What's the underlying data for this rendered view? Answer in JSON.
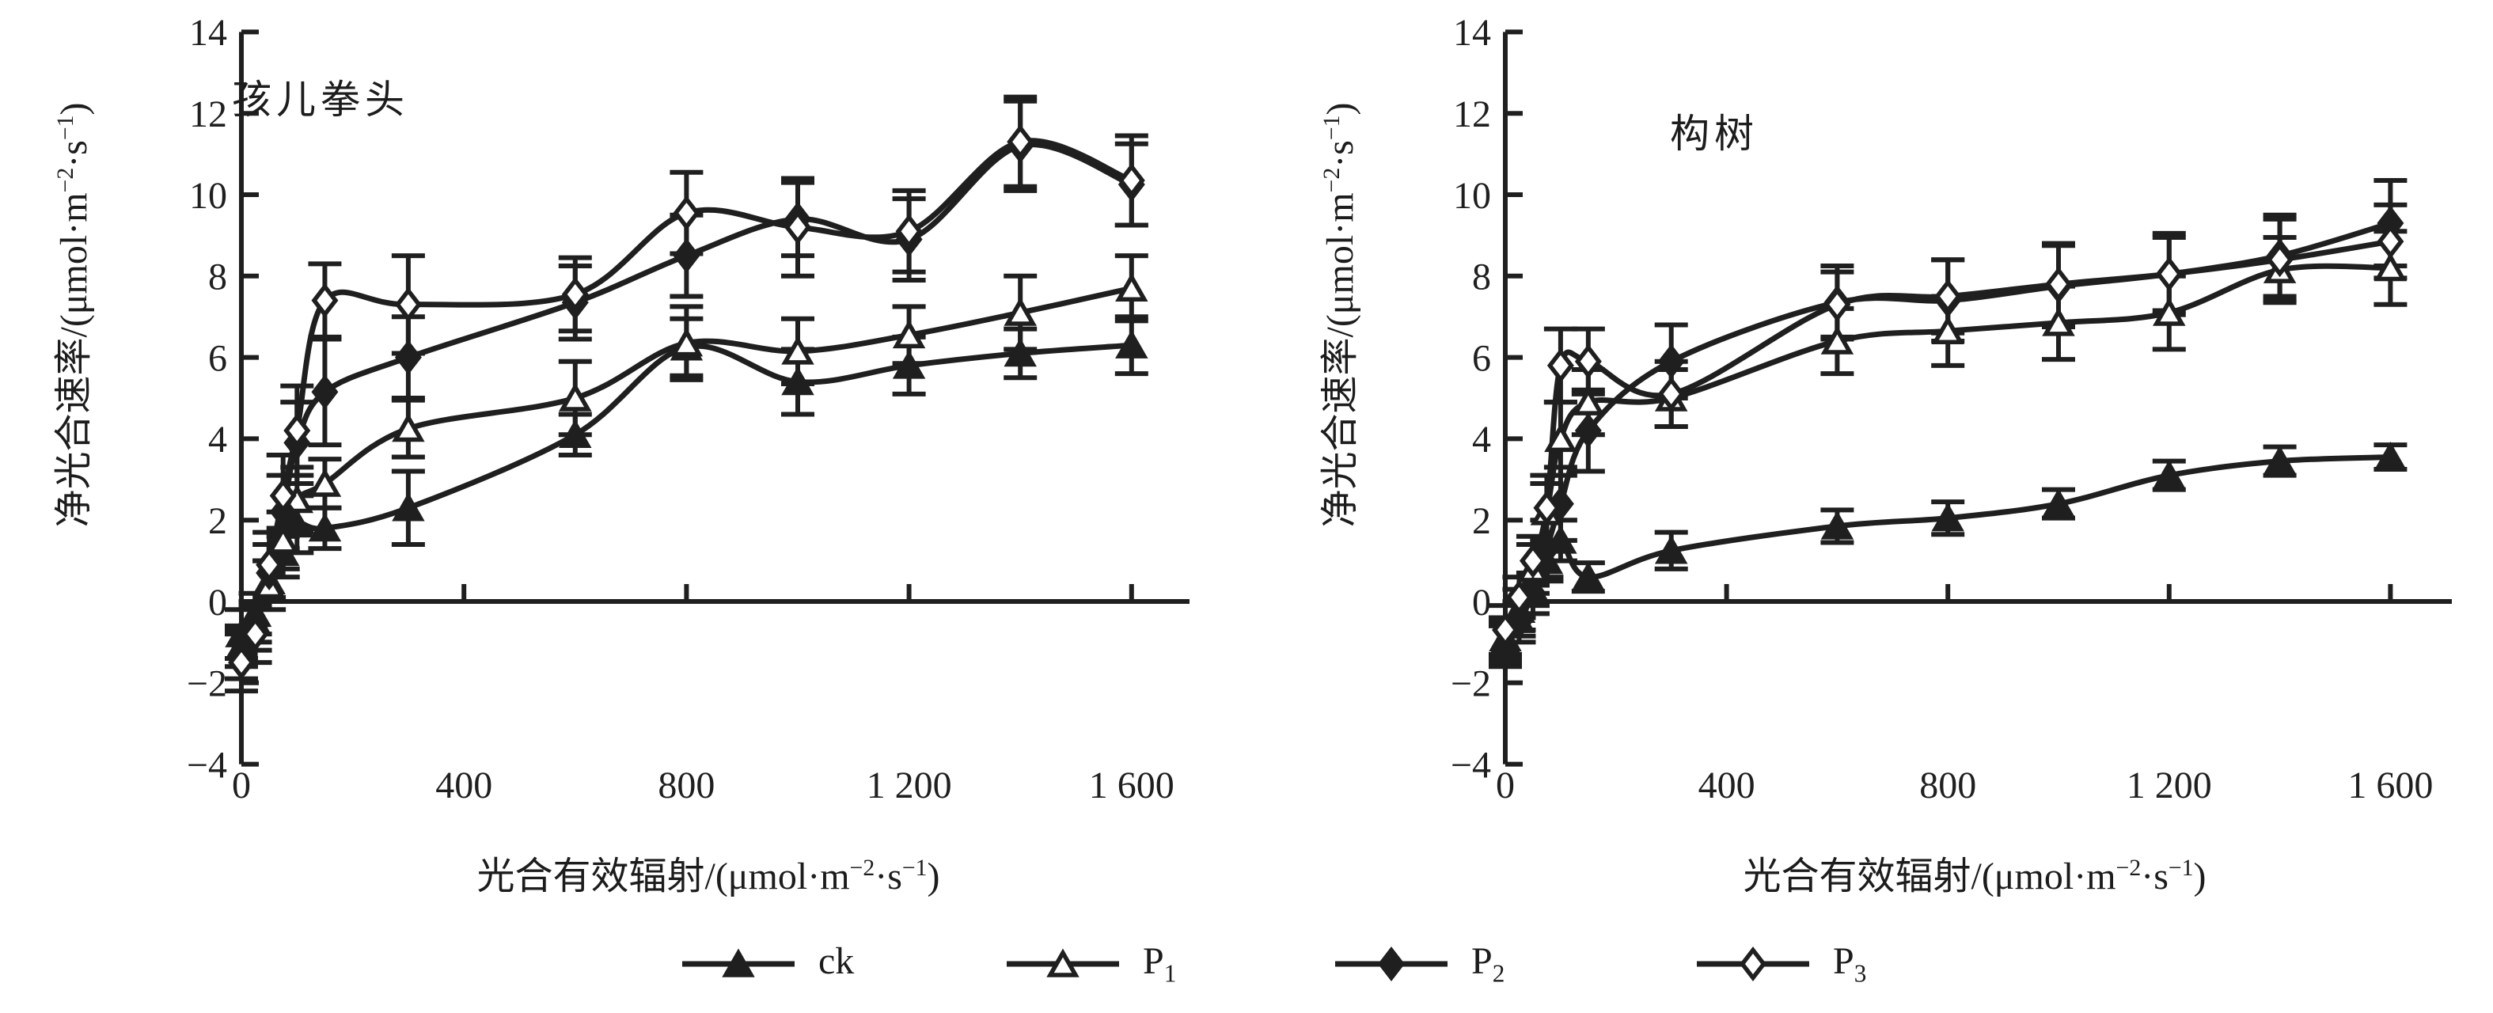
{
  "page": {
    "background_color": "#ffffff",
    "ink_color": "#1f1f1f"
  },
  "axis_titles": {
    "y_full": "净光合速率/(μmol·m⁻²·s⁻¹)",
    "x_full": "光合有效辐射/(μmol·m⁻²·s⁻¹)",
    "y_parts": {
      "pre": "净光合速率/(μmol·m",
      "sup1": "−2",
      "mid": "·s",
      "sup2": "−1",
      "post": ")"
    },
    "x_parts": {
      "pre": "光合有效辐射/(μmol·m",
      "sup1": "−2",
      "mid": "·s",
      "sup2": "−1",
      "post": ")"
    }
  },
  "legend": {
    "entries": [
      {
        "id": "ck",
        "base": "ck",
        "sub": "",
        "marker": "triangle-filled"
      },
      {
        "id": "P1",
        "base": "P",
        "sub": "1",
        "marker": "triangle-open"
      },
      {
        "id": "P2",
        "base": "P",
        "sub": "2",
        "marker": "diamond-filled"
      },
      {
        "id": "P3",
        "base": "P",
        "sub": "3",
        "marker": "diamond-open"
      }
    ]
  },
  "chart_data": [
    {
      "type": "line",
      "panel": "left",
      "title": "孩儿拳头",
      "xlabel": "光合有效辐射/(μmol·m⁻²·s⁻¹)",
      "ylabel": "净光合速率/(μmol·m⁻²·s⁻¹)",
      "xlim": [
        0,
        1700
      ],
      "ylim": [
        -4,
        14
      ],
      "grid": false,
      "x_tick_values": [
        0,
        400,
        800,
        1200,
        1600
      ],
      "x_tick_labels": [
        "0",
        "400",
        "800",
        "1 200",
        "1 600"
      ],
      "y_tick_values": [
        14,
        12,
        10,
        8,
        6,
        4,
        2,
        0,
        -2,
        -4
      ],
      "y_tick_labels": [
        "14",
        "12",
        "10",
        "8",
        "6",
        "4",
        "2",
        "0",
        "−2",
        "−4"
      ],
      "x": [
        0,
        25,
        50,
        75,
        100,
        150,
        300,
        600,
        800,
        1000,
        1200,
        1400,
        1600
      ],
      "series": [
        {
          "name": "ck",
          "marker": "triangle-filled",
          "values": [
            -0.8,
            -0.3,
            0.5,
            1.2,
            1.9,
            1.8,
            2.3,
            4.1,
            6.25,
            5.4,
            5.8,
            6.1,
            6.3
          ],
          "errors": [
            0.6,
            0.5,
            0.5,
            0.6,
            0.7,
            0.5,
            0.9,
            0.5,
            0.7,
            0.8,
            0.7,
            0.6,
            0.7
          ]
        },
        {
          "name": "P1",
          "marker": "triangle-open",
          "values": [
            -1.1,
            -0.5,
            0.4,
            1.5,
            2.5,
            2.9,
            4.25,
            5.0,
            6.35,
            6.15,
            6.55,
            7.1,
            7.7
          ],
          "errors": [
            0.5,
            0.5,
            0.6,
            0.7,
            0.8,
            0.6,
            0.7,
            0.9,
            0.9,
            0.8,
            0.7,
            0.9,
            0.8
          ]
        },
        {
          "name": "P2",
          "marker": "diamond-filled",
          "values": [
            -1.3,
            -0.6,
            0.7,
            2.2,
            3.9,
            5.15,
            6.0,
            7.35,
            8.5,
            9.4,
            8.9,
            11.2,
            10.25
          ],
          "errors": [
            0.6,
            0.6,
            0.7,
            0.9,
            1.0,
            1.3,
            1.0,
            0.9,
            1.0,
            0.9,
            1.0,
            1.1,
            1.0
          ]
        },
        {
          "name": "P3",
          "marker": "diamond-open",
          "values": [
            -1.5,
            -0.8,
            0.9,
            2.6,
            4.2,
            7.4,
            7.3,
            7.55,
            9.55,
            9.2,
            9.1,
            11.3,
            10.35
          ],
          "errors": [
            0.7,
            0.7,
            0.8,
            1.0,
            1.1,
            0.9,
            1.2,
            0.9,
            1.0,
            1.2,
            1.0,
            1.1,
            1.1
          ]
        }
      ]
    },
    {
      "type": "line",
      "panel": "right",
      "title": "构树",
      "xlabel": "光合有效辐射/(μmol·m⁻²·s⁻¹)",
      "ylabel": "净光合速率/(μmol·m⁻²·s⁻¹)",
      "xlim": [
        0,
        1700
      ],
      "ylim": [
        -4,
        14
      ],
      "grid": false,
      "x_tick_values": [
        0,
        400,
        800,
        1200,
        1600
      ],
      "x_tick_labels": [
        "0",
        "400",
        "800",
        "1 200",
        "1 600"
      ],
      "y_tick_values": [
        14,
        12,
        10,
        8,
        6,
        4,
        2,
        0,
        -2,
        -4
      ],
      "y_tick_labels": [
        "14",
        "12",
        "10",
        "8",
        "6",
        "4",
        "2",
        "0",
        "−2",
        "−4"
      ],
      "x": [
        0,
        25,
        50,
        75,
        100,
        150,
        300,
        600,
        800,
        1000,
        1200,
        1400,
        1600
      ],
      "series": [
        {
          "name": "ck",
          "marker": "triangle-filled",
          "values": [
            -1.0,
            -0.45,
            0.3,
            1.0,
            1.5,
            0.6,
            1.25,
            1.85,
            2.05,
            2.4,
            3.1,
            3.45,
            3.55
          ],
          "errors": [
            0.5,
            0.4,
            0.4,
            0.5,
            0.5,
            0.35,
            0.45,
            0.4,
            0.4,
            0.35,
            0.35,
            0.35,
            0.3
          ]
        },
        {
          "name": "P1",
          "marker": "triangle-open",
          "values": [
            -0.9,
            -0.2,
            0.8,
            2.2,
            4.0,
            4.9,
            5.0,
            6.4,
            6.65,
            6.85,
            7.1,
            8.15,
            8.2
          ],
          "errors": [
            0.5,
            0.5,
            0.6,
            0.7,
            0.9,
            0.8,
            0.7,
            0.8,
            0.85,
            0.9,
            0.9,
            0.8,
            0.9
          ]
        },
        {
          "name": "P2",
          "marker": "diamond-filled",
          "values": [
            -1.1,
            -0.5,
            0.2,
            1.3,
            2.4,
            4.2,
            5.9,
            7.35,
            7.4,
            7.75,
            8.05,
            8.5,
            9.3
          ],
          "errors": [
            0.5,
            0.5,
            0.5,
            0.7,
            0.9,
            1.0,
            0.9,
            0.9,
            1.0,
            1.0,
            1.0,
            1.0,
            1.05
          ]
        },
        {
          "name": "P3",
          "marker": "diamond-open",
          "values": [
            -0.7,
            0.1,
            1.0,
            2.3,
            5.8,
            5.9,
            5.1,
            7.3,
            7.5,
            7.8,
            8.05,
            8.4,
            8.85
          ],
          "errors": [
            0.6,
            0.5,
            0.6,
            0.8,
            0.9,
            0.8,
            0.8,
            0.8,
            0.9,
            1.0,
            0.9,
            1.0,
            0.9
          ]
        }
      ]
    }
  ]
}
